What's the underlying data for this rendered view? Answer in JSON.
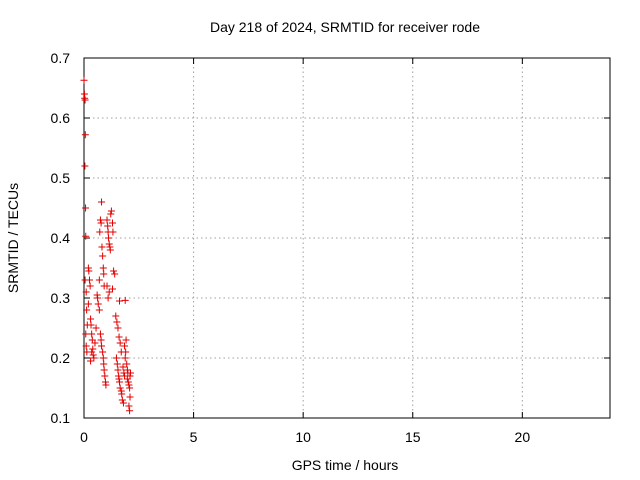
{
  "chart_data": {
    "type": "scatter",
    "title": "Day 218 of 2024, SRMTID for receiver rode",
    "xlabel": "GPS time / hours",
    "ylabel": "SRMTID / TECUs",
    "xlim": [
      0,
      24
    ],
    "ylim": [
      0.1,
      0.7
    ],
    "xticks": [
      0,
      5,
      10,
      15,
      20
    ],
    "yticks": [
      0.1,
      0.2,
      0.3,
      0.4,
      0.5,
      0.6,
      0.7
    ],
    "xtick_labels": [
      "0",
      "5",
      "10",
      "15",
      "20"
    ],
    "ytick_labels": [
      "0.1",
      "0.2",
      "0.3",
      "0.4",
      "0.5",
      "0.6",
      "0.7"
    ],
    "grid": true,
    "marker": "+",
    "color": "#e00000",
    "series": [
      {
        "name": "SRMTID",
        "points": [
          [
            0.0,
            0.663
          ],
          [
            0.02,
            0.64
          ],
          [
            0.03,
            0.633
          ],
          [
            0.05,
            0.63
          ],
          [
            0.06,
            0.572
          ],
          [
            0.04,
            0.52
          ],
          [
            0.07,
            0.45
          ],
          [
            0.08,
            0.403
          ],
          [
            0.05,
            0.33
          ],
          [
            0.1,
            0.31
          ],
          [
            0.12,
            0.28
          ],
          [
            0.15,
            0.255
          ],
          [
            0.08,
            0.24
          ],
          [
            0.1,
            0.22
          ],
          [
            0.13,
            0.21
          ],
          [
            0.2,
            0.35
          ],
          [
            0.22,
            0.345
          ],
          [
            0.25,
            0.33
          ],
          [
            0.28,
            0.32
          ],
          [
            0.2,
            0.29
          ],
          [
            0.3,
            0.265
          ],
          [
            0.32,
            0.255
          ],
          [
            0.35,
            0.24
          ],
          [
            0.38,
            0.23
          ],
          [
            0.4,
            0.215
          ],
          [
            0.42,
            0.205
          ],
          [
            0.45,
            0.2
          ],
          [
            0.3,
            0.195
          ],
          [
            0.35,
            0.21
          ],
          [
            0.5,
            0.225
          ],
          [
            0.55,
            0.25
          ],
          [
            0.6,
            0.305
          ],
          [
            0.62,
            0.3
          ],
          [
            0.65,
            0.29
          ],
          [
            0.7,
            0.33
          ],
          [
            0.72,
            0.41
          ],
          [
            0.75,
            0.43
          ],
          [
            0.8,
            0.46
          ],
          [
            0.78,
            0.425
          ],
          [
            0.82,
            0.385
          ],
          [
            0.85,
            0.37
          ],
          [
            0.88,
            0.35
          ],
          [
            0.9,
            0.34
          ],
          [
            0.92,
            0.32
          ],
          [
            0.7,
            0.28
          ],
          [
            0.75,
            0.24
          ],
          [
            0.78,
            0.23
          ],
          [
            0.8,
            0.22
          ],
          [
            0.85,
            0.21
          ],
          [
            0.88,
            0.2
          ],
          [
            0.9,
            0.19
          ],
          [
            0.92,
            0.18
          ],
          [
            0.95,
            0.17
          ],
          [
            0.98,
            0.16
          ],
          [
            1.0,
            0.155
          ],
          [
            1.05,
            0.43
          ],
          [
            1.08,
            0.42
          ],
          [
            1.1,
            0.41
          ],
          [
            1.12,
            0.4
          ],
          [
            1.15,
            0.39
          ],
          [
            1.18,
            0.385
          ],
          [
            1.2,
            0.38
          ],
          [
            1.22,
            0.44
          ],
          [
            1.25,
            0.445
          ],
          [
            1.3,
            0.425
          ],
          [
            1.32,
            0.41
          ],
          [
            1.35,
            0.345
          ],
          [
            1.4,
            0.34
          ],
          [
            1.05,
            0.32
          ],
          [
            1.1,
            0.3
          ],
          [
            1.15,
            0.31
          ],
          [
            1.3,
            0.315
          ],
          [
            1.45,
            0.27
          ],
          [
            1.5,
            0.26
          ],
          [
            1.55,
            0.25
          ],
          [
            1.6,
            0.235
          ],
          [
            1.65,
            0.225
          ],
          [
            1.7,
            0.21
          ],
          [
            1.48,
            0.2
          ],
          [
            1.52,
            0.19
          ],
          [
            1.55,
            0.18
          ],
          [
            1.58,
            0.17
          ],
          [
            1.6,
            0.165
          ],
          [
            1.62,
            0.16
          ],
          [
            1.65,
            0.15
          ],
          [
            1.7,
            0.145
          ],
          [
            1.72,
            0.14
          ],
          [
            1.75,
            0.13
          ],
          [
            1.8,
            0.125
          ],
          [
            1.78,
            0.185
          ],
          [
            1.82,
            0.175
          ],
          [
            1.85,
            0.17
          ],
          [
            1.88,
            0.2
          ],
          [
            1.9,
            0.21
          ],
          [
            1.85,
            0.22
          ],
          [
            1.92,
            0.23
          ],
          [
            1.95,
            0.19
          ],
          [
            1.98,
            0.18
          ],
          [
            2.0,
            0.175
          ],
          [
            1.98,
            0.165
          ],
          [
            2.02,
            0.16
          ],
          [
            2.05,
            0.155
          ],
          [
            2.08,
            0.15
          ],
          [
            2.1,
            0.135
          ],
          [
            2.05,
            0.12
          ],
          [
            2.08,
            0.112
          ],
          [
            1.88,
            0.296
          ],
          [
            1.62,
            0.295
          ],
          [
            2.1,
            0.17
          ],
          [
            2.12,
            0.175
          ]
        ]
      }
    ]
  }
}
